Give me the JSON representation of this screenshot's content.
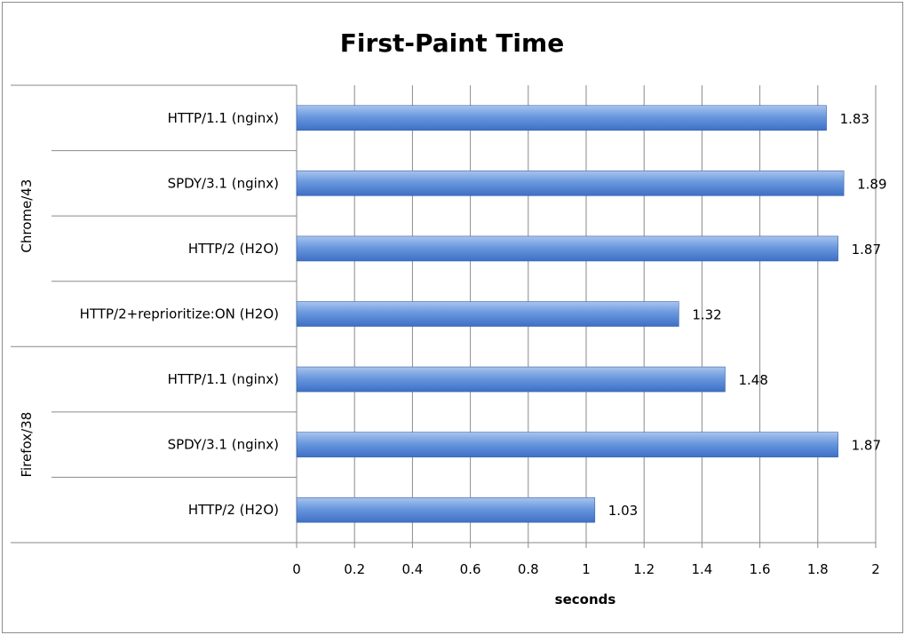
{
  "chart_data": {
    "type": "bar",
    "orientation": "horizontal",
    "title": "First-Paint Time",
    "xlabel": "seconds",
    "ylabel": "",
    "xlim": [
      0,
      2
    ],
    "x_ticks": [
      "0",
      "0.2",
      "0.4",
      "0.6",
      "0.8",
      "1",
      "1.2",
      "1.4",
      "1.6",
      "1.8",
      "2"
    ],
    "grid": true,
    "legend": "none",
    "groups": [
      {
        "name": "Chrome/43",
        "categories": [
          "HTTP/1.1 (nginx)",
          "SPDY/3.1 (nginx)",
          "HTTP/2 (H2O)",
          "HTTP/2+reprioritize:ON (H2O)"
        ],
        "values": [
          1.83,
          1.89,
          1.87,
          1.32
        ],
        "labels": [
          "1.83",
          "1.89",
          "1.87",
          "1.32"
        ]
      },
      {
        "name": "Firefox/38",
        "categories": [
          "HTTP/1.1 (nginx)",
          "SPDY/3.1 (nginx)",
          "HTTP/2 (H2O)"
        ],
        "values": [
          1.48,
          1.87,
          1.03
        ],
        "labels": [
          "1.48",
          "1.87",
          "1.03"
        ]
      }
    ],
    "bar_color": "#4f81bd"
  }
}
